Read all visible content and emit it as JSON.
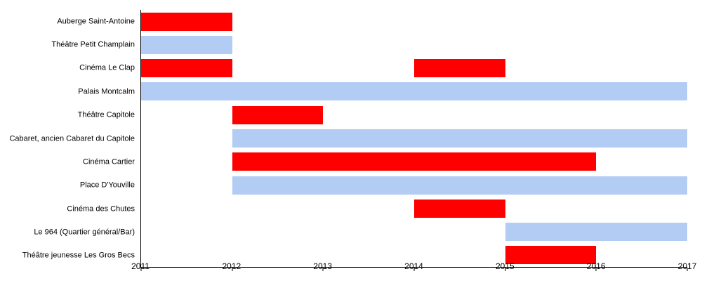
{
  "chart_data": {
    "type": "bar",
    "variant": "gantt-horizontal",
    "title": "",
    "xlabel": "",
    "ylabel": "",
    "grid": false,
    "legend": false,
    "x_axis": {
      "min": 2011,
      "max": 2017,
      "ticks": [
        "2011",
        "2012",
        "2013",
        "2014",
        "2015",
        "2016",
        "2017"
      ]
    },
    "colors": {
      "red": "#ff0000",
      "blue": "#b3ccf4",
      "axis": "#000000",
      "text": "#000000",
      "background": "#ffffff"
    },
    "rows": [
      {
        "label": "Auberge Saint-Antoine",
        "bars": [
          {
            "start": 2011,
            "end": 2012,
            "color": "red"
          }
        ]
      },
      {
        "label": "Théâtre Petit Champlain",
        "bars": [
          {
            "start": 2011,
            "end": 2012,
            "color": "blue"
          }
        ]
      },
      {
        "label": "Cinéma Le Clap",
        "bars": [
          {
            "start": 2011,
            "end": 2012,
            "color": "red"
          },
          {
            "start": 2014,
            "end": 2015,
            "color": "red"
          }
        ]
      },
      {
        "label": "Palais Montcalm",
        "bars": [
          {
            "start": 2011,
            "end": 2017,
            "color": "blue"
          }
        ]
      },
      {
        "label": "Théâtre Capitole",
        "bars": [
          {
            "start": 2012,
            "end": 2013,
            "color": "red"
          }
        ]
      },
      {
        "label": "Cabaret, ancien Cabaret du Capitole",
        "bars": [
          {
            "start": 2012,
            "end": 2017,
            "color": "blue"
          }
        ]
      },
      {
        "label": "Cinéma Cartier",
        "bars": [
          {
            "start": 2012,
            "end": 2016,
            "color": "red"
          }
        ]
      },
      {
        "label": "Place D'Youville",
        "bars": [
          {
            "start": 2012,
            "end": 2017,
            "color": "blue"
          }
        ]
      },
      {
        "label": "Cinéma des Chutes",
        "bars": [
          {
            "start": 2014,
            "end": 2015,
            "color": "red"
          }
        ]
      },
      {
        "label": "Le 964 (Quartier général/Bar)",
        "bars": [
          {
            "start": 2015,
            "end": 2017,
            "color": "blue"
          }
        ]
      },
      {
        "label": "Théâtre jeunesse Les Gros Becs",
        "bars": [
          {
            "start": 2015,
            "end": 2016,
            "color": "red"
          }
        ]
      }
    ]
  }
}
